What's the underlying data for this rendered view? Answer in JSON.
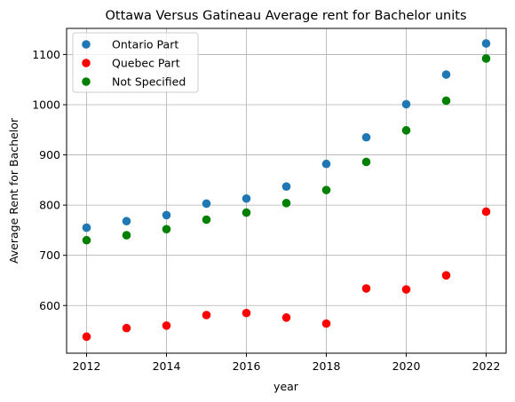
{
  "chart_data": {
    "type": "scatter",
    "title": "Ottawa Versus Gatineau Average rent for Bachelor units",
    "xlabel": "year",
    "ylabel": "Average Rent for Bachelor",
    "xlim": [
      2011.5,
      2022.5
    ],
    "ylim": [
      505,
      1152
    ],
    "xticks": [
      2012,
      2014,
      2016,
      2018,
      2020,
      2022
    ],
    "yticks": [
      600,
      700,
      800,
      900,
      1000,
      1100
    ],
    "grid": true,
    "legend_position": "top-left",
    "x": [
      2012,
      2013,
      2014,
      2015,
      2016,
      2017,
      2018,
      2019,
      2020,
      2021,
      2022
    ],
    "series": [
      {
        "name": "Ontario Part",
        "color": "#1f77b4",
        "values": [
          755,
          768,
          780,
          803,
          813,
          837,
          882,
          935,
          1001,
          1060,
          1122
        ]
      },
      {
        "name": "Quebec Part",
        "color": "#ff0000",
        "values": [
          538,
          555,
          560,
          581,
          585,
          576,
          564,
          634,
          632,
          660,
          787
        ]
      },
      {
        "name": "Not Specified",
        "color": "#008000",
        "values": [
          730,
          740,
          752,
          771,
          785,
          804,
          830,
          886,
          949,
          1008,
          1092
        ]
      }
    ]
  }
}
